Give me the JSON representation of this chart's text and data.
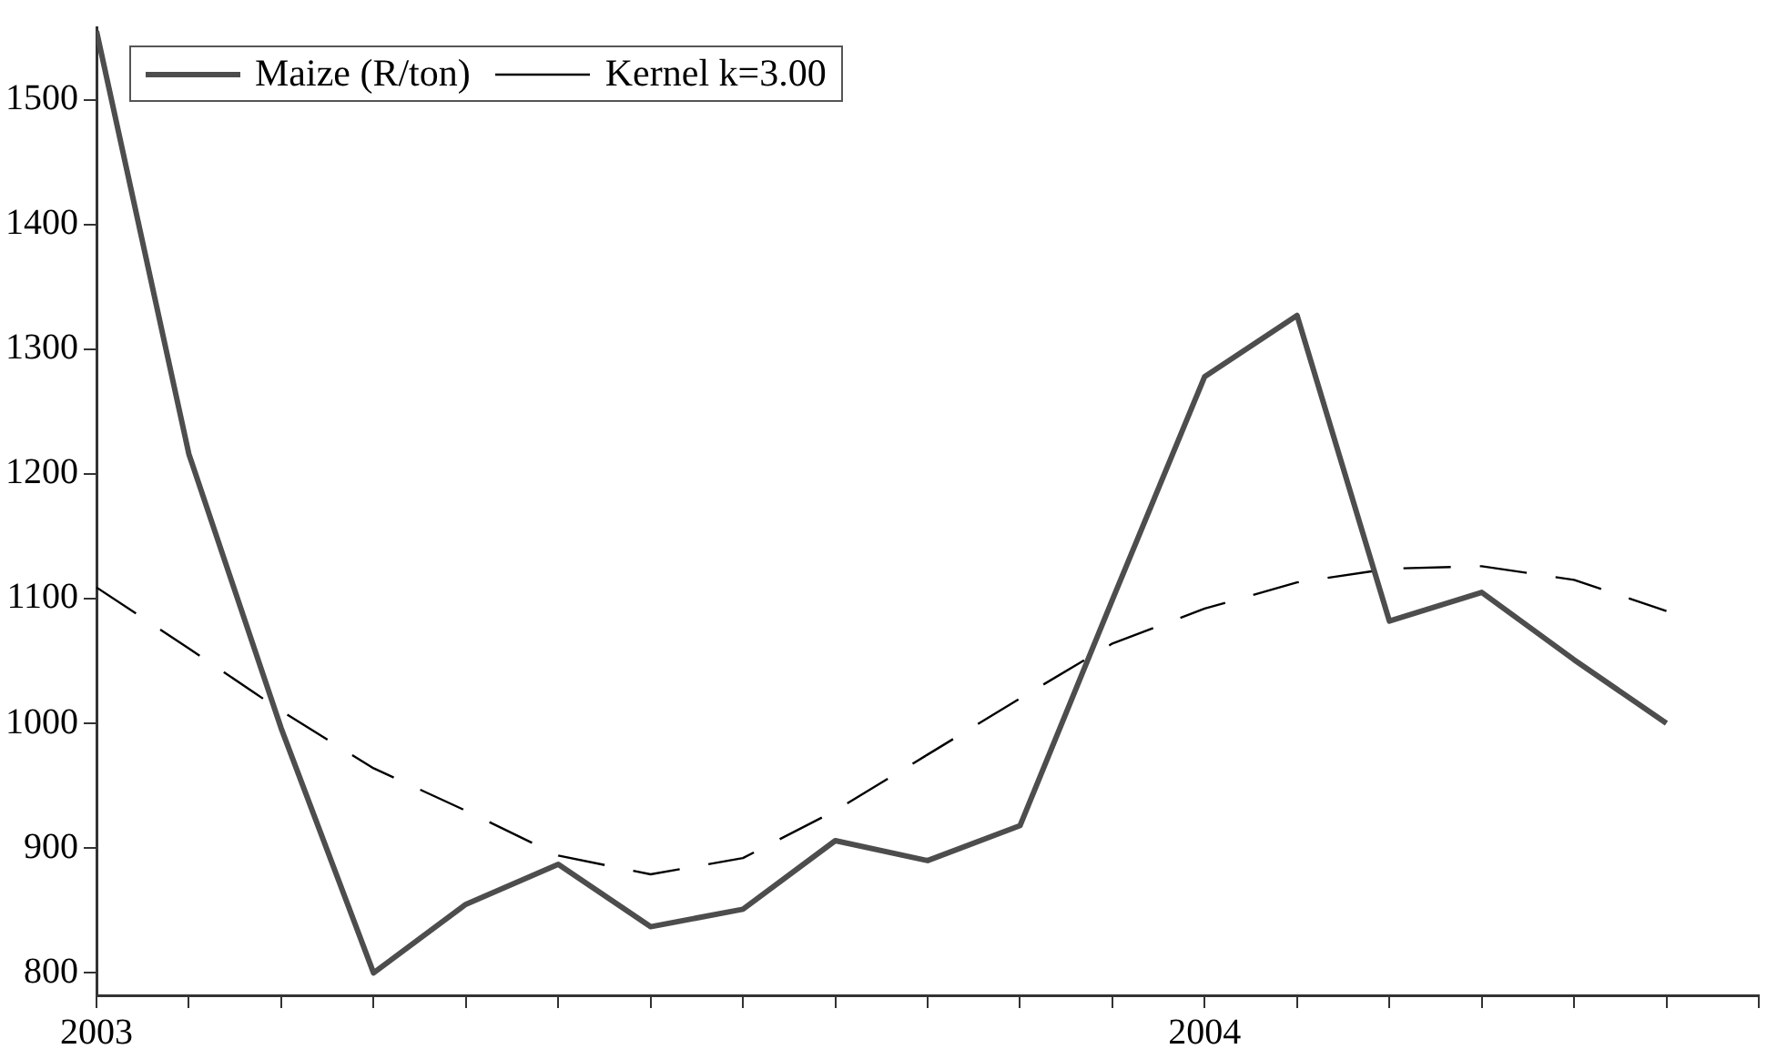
{
  "chart_data": {
    "type": "line",
    "x": [
      "2003-01",
      "2003-02",
      "2003-03",
      "2003-04",
      "2003-05",
      "2003-06",
      "2003-07",
      "2003-08",
      "2003-09",
      "2003-10",
      "2003-11",
      "2003-12",
      "2004-01",
      "2004-02",
      "2004-03",
      "2004-04",
      "2004-05",
      "2004-06"
    ],
    "series": [
      {
        "name": "Maize (R/ton)",
        "color": "#4d4d4d",
        "line_style": "solid",
        "values": [
          1555,
          1216,
          996,
          800,
          855,
          887,
          837,
          851,
          906,
          890,
          918,
          1099,
          1278,
          1327,
          1082,
          1105,
          1051,
          1000
        ]
      },
      {
        "name": "Kernel k=3.00",
        "color": "#000000",
        "line_style": "dashed",
        "values": [
          1109,
          1060,
          1010,
          964,
          930,
          894,
          879,
          892,
          930,
          975,
          1020,
          1064,
          1092,
          1113,
          1124,
          1126,
          1115,
          1090
        ]
      }
    ],
    "xlim": [
      "2003-01",
      "2004-07"
    ],
    "xticks": [
      {
        "value": "2003-01",
        "label": "2003"
      },
      {
        "value": "2003-02",
        "label": null
      },
      {
        "value": "2003-03",
        "label": null
      },
      {
        "value": "2003-04",
        "label": null
      },
      {
        "value": "2003-05",
        "label": null
      },
      {
        "value": "2003-06",
        "label": null
      },
      {
        "value": "2003-07",
        "label": null
      },
      {
        "value": "2003-08",
        "label": null
      },
      {
        "value": "2003-09",
        "label": null
      },
      {
        "value": "2003-10",
        "label": null
      },
      {
        "value": "2003-11",
        "label": null
      },
      {
        "value": "2003-12",
        "label": null
      },
      {
        "value": "2004-01",
        "label": "2004"
      },
      {
        "value": "2004-02",
        "label": null
      },
      {
        "value": "2004-03",
        "label": null
      },
      {
        "value": "2004-04",
        "label": null
      },
      {
        "value": "2004-05",
        "label": null
      },
      {
        "value": "2004-06",
        "label": null
      },
      {
        "value": "2004-07",
        "label": null
      }
    ],
    "ylim": [
      782,
      1558
    ],
    "yticks": [
      800,
      900,
      1000,
      1100,
      1200,
      1300,
      1400,
      1500
    ],
    "grid": false,
    "legend": "top left",
    "marker": "none"
  }
}
